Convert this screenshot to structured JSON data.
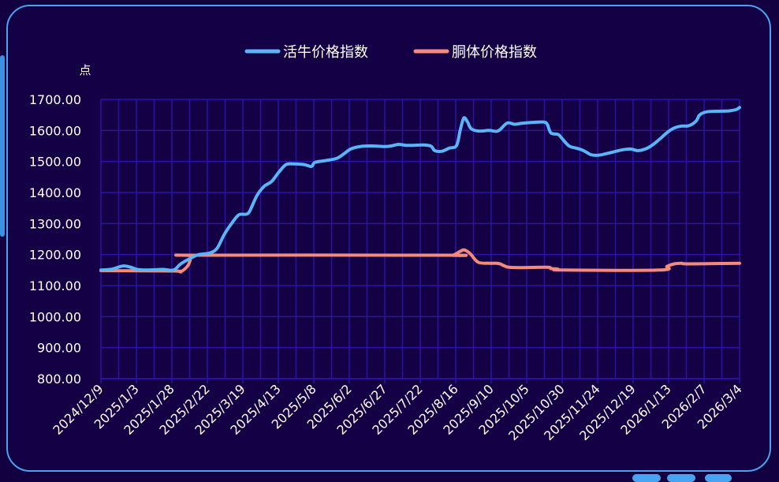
{
  "chart_data": {
    "type": "line",
    "ylabel": "点",
    "ylim": [
      800,
      1700
    ],
    "yticks": [
      "800.00",
      "900.00",
      "1000.00",
      "1100.00",
      "1200.00",
      "1300.00",
      "1400.00",
      "1500.00",
      "1600.00",
      "1700.00"
    ],
    "xticks": [
      "2024/12/9",
      "2025/1/3",
      "2025/1/28",
      "2025/2/22",
      "2025/3/19",
      "2025/4/13",
      "2025/5/8",
      "2025/6/2",
      "2025/6/27",
      "2025/7/22",
      "2025/8/16",
      "2025/9/10",
      "2025/10/5",
      "2025/10/30",
      "2025/11/24",
      "2025/12/19",
      "2026/1/13",
      "2026/2/7",
      "2026/3/4"
    ],
    "legend_position": "top-center",
    "grid": true,
    "series": [
      {
        "name": "活牛价格指数",
        "color": "#5ab4f5",
        "points": [
          [
            0,
            1150
          ],
          [
            3,
            1153
          ],
          [
            6,
            1163
          ],
          [
            8,
            1160
          ],
          [
            10,
            1152
          ],
          [
            13,
            1150
          ],
          [
            17,
            1152
          ],
          [
            20,
            1150
          ],
          [
            22,
            1170
          ],
          [
            25,
            1190
          ],
          [
            27,
            1200
          ],
          [
            30,
            1205
          ],
          [
            32,
            1220
          ],
          [
            34,
            1265
          ],
          [
            36,
            1300
          ],
          [
            38,
            1328
          ],
          [
            40,
            1330
          ],
          [
            41,
            1340
          ],
          [
            43,
            1390
          ],
          [
            45,
            1420
          ],
          [
            47,
            1435
          ],
          [
            49,
            1465
          ],
          [
            51,
            1490
          ],
          [
            53,
            1492
          ],
          [
            56,
            1490
          ],
          [
            58,
            1484
          ],
          [
            59,
            1497
          ],
          [
            62,
            1503
          ],
          [
            65,
            1510
          ],
          [
            67,
            1525
          ],
          [
            69,
            1541
          ],
          [
            72,
            1549
          ],
          [
            75,
            1550
          ],
          [
            78,
            1548
          ],
          [
            80,
            1550
          ],
          [
            82,
            1555
          ],
          [
            84,
            1552
          ],
          [
            86,
            1552
          ],
          [
            89,
            1553
          ],
          [
            91,
            1549
          ],
          [
            92,
            1535
          ],
          [
            94,
            1533
          ],
          [
            96,
            1543
          ],
          [
            98,
            1551
          ],
          [
            99,
            1600
          ],
          [
            100,
            1640
          ],
          [
            101,
            1628
          ],
          [
            102,
            1606
          ],
          [
            104,
            1598
          ],
          [
            107,
            1600
          ],
          [
            109,
            1597
          ],
          [
            110,
            1603
          ],
          [
            112,
            1624
          ],
          [
            114,
            1620
          ],
          [
            116,
            1623
          ],
          [
            119,
            1626
          ],
          [
            122,
            1627
          ],
          [
            123,
            1620
          ],
          [
            124,
            1592
          ],
          [
            126,
            1587
          ],
          [
            127,
            1575
          ],
          [
            129,
            1550
          ],
          [
            131,
            1543
          ],
          [
            133,
            1535
          ],
          [
            135,
            1522
          ],
          [
            137,
            1520
          ],
          [
            140,
            1527
          ],
          [
            142,
            1533
          ],
          [
            144,
            1538
          ],
          [
            146,
            1540
          ],
          [
            148,
            1535
          ],
          [
            150,
            1540
          ],
          [
            152,
            1553
          ],
          [
            154,
            1572
          ],
          [
            156,
            1593
          ],
          [
            158,
            1608
          ],
          [
            160,
            1614
          ],
          [
            162,
            1615
          ],
          [
            164,
            1630
          ],
          [
            165,
            1650
          ],
          [
            167,
            1660
          ],
          [
            171,
            1662
          ],
          [
            173,
            1663
          ],
          [
            175,
            1667
          ],
          [
            176,
            1674
          ]
        ]
      },
      {
        "name": "胴体价格指数",
        "color": "#f58a7c",
        "points": [
          [
            0,
            1148
          ],
          [
            20,
            1147
          ],
          [
            22,
            1145
          ],
          [
            24,
            1165
          ],
          [
            25,
            1195
          ],
          [
            26,
            1198
          ],
          [
            95,
            1198
          ],
          [
            97,
            1198
          ],
          [
            99,
            1210
          ],
          [
            100,
            1215
          ],
          [
            101,
            1210
          ],
          [
            102,
            1200
          ],
          [
            104,
            1175
          ],
          [
            107,
            1172
          ],
          [
            109,
            1172
          ],
          [
            110,
            1170
          ],
          [
            112,
            1160
          ],
          [
            115,
            1158
          ],
          [
            123,
            1159
          ],
          [
            124,
            1155
          ],
          [
            126,
            1153
          ],
          [
            127,
            1150
          ],
          [
            154,
            1150
          ],
          [
            156,
            1162
          ],
          [
            158,
            1170
          ],
          [
            160,
            1172
          ],
          [
            162,
            1170
          ],
          [
            176,
            1172
          ]
        ]
      }
    ]
  }
}
